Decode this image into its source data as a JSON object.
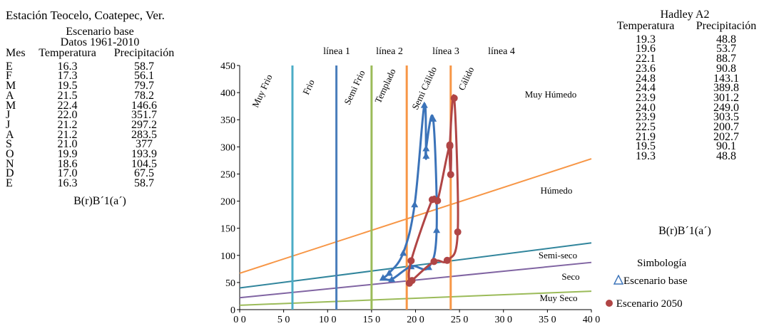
{
  "left_panel": {
    "station": "Estación Teocelo, Coatepec, Ver.",
    "scenario": "Escenario base",
    "period": "Datos 1961-2010",
    "headers": [
      "Mes",
      "Temperatura",
      "Precipitación"
    ],
    "rows": [
      [
        "E",
        "16.3",
        "58.7"
      ],
      [
        "F",
        "17.3",
        "56.1"
      ],
      [
        "M",
        "19.5",
        "79.7"
      ],
      [
        "A",
        "21.5",
        "78.2"
      ],
      [
        "M",
        "22.4",
        "146.6"
      ],
      [
        "J",
        "22.0",
        "351.7"
      ],
      [
        "J",
        "21.2",
        "297.2"
      ],
      [
        "A",
        "21.2",
        "283.5"
      ],
      [
        "S",
        "21.0",
        "377"
      ],
      [
        "O",
        "19.9",
        "193.9"
      ],
      [
        "N",
        "18.6",
        "104.5"
      ],
      [
        "D",
        "17.0",
        "67.5"
      ],
      [
        "E",
        "16.3",
        "58.7"
      ]
    ],
    "climate_code": "B(r)B´1(a´)"
  },
  "right_panel": {
    "title": "Hadley A2",
    "headers": [
      "Temperatura",
      "Precipitación"
    ],
    "rows": [
      [
        "19.3",
        "48.8"
      ],
      [
        "19.6",
        "53.7"
      ],
      [
        "22.1",
        "88.7"
      ],
      [
        "23.6",
        "90.8"
      ],
      [
        "24.8",
        "143.1"
      ],
      [
        "24.4",
        "389.8"
      ],
      [
        "23.9",
        "301.2"
      ],
      [
        "24.0",
        "249.0"
      ],
      [
        "23.9",
        "303.5"
      ],
      [
        "22.5",
        "200.7"
      ],
      [
        "21.9",
        "202.7"
      ],
      [
        "19.5",
        "90.1"
      ],
      [
        "19.3",
        "48.8"
      ]
    ],
    "climate_code": "B(r)B´1(a´)"
  },
  "legend": {
    "title": "Simbología",
    "base_label": "Escenario base",
    "future_label": "Escenario 2050"
  },
  "colors": {
    "base": "#3b73b9",
    "future": "#b04545",
    "cyan": "#4bacc6",
    "blue": "#4a7ebb",
    "green": "#9bbb59",
    "orange": "#f79646",
    "purple": "#8064a2",
    "teal": "#31859c"
  },
  "chart_data": {
    "type": "scatter",
    "xlim": [
      0,
      40
    ],
    "ylim": [
      0,
      450
    ],
    "x_ticks": [
      "0 0",
      "5 0",
      "10 0",
      "15 0",
      "20 0",
      "25 0",
      "30 0",
      "35 0",
      "40 0"
    ],
    "y_ticks": [
      "0",
      "50",
      "100",
      "150",
      "200",
      "250",
      "300",
      "350",
      "400",
      "450"
    ],
    "vertical_lines": [
      {
        "label": "",
        "x": 6,
        "color": "cyan"
      },
      {
        "label": "línea 1",
        "x": 11,
        "color": "blue"
      },
      {
        "label": "línea 2",
        "x": 15,
        "color": "green"
      },
      {
        "label": "línea 3",
        "x": 19,
        "color": "orange"
      },
      {
        "label": "línea 4",
        "x": 24,
        "color": "orange"
      }
    ],
    "temperature_zones": [
      "Muy Frio",
      "Frio",
      "Semi Frio",
      "Templado",
      "Semi Cálido",
      "Cálido"
    ],
    "humidity_lines": [
      {
        "label": "Húmedo",
        "y0": 67,
        "y1": 278,
        "color": "orange"
      },
      {
        "label": "Semi-seco",
        "y0": 40,
        "y1": 123,
        "color": "teal"
      },
      {
        "label": "Seco",
        "y0": 22,
        "y1": 87,
        "color": "purple"
      },
      {
        "label": "Muy Seco",
        "y0": 8,
        "y1": 34,
        "color": "green"
      }
    ],
    "humidity_top_label": "Muy Húmedo",
    "series": [
      {
        "name": "Escenario base",
        "marker": "triangle",
        "color": "base",
        "points": [
          [
            16.3,
            58.7
          ],
          [
            17.3,
            56.1
          ],
          [
            19.5,
            79.7
          ],
          [
            21.5,
            78.2
          ],
          [
            22.4,
            146.6
          ],
          [
            22.0,
            351.7
          ],
          [
            21.2,
            297.2
          ],
          [
            21.2,
            283.5
          ],
          [
            21.0,
            377
          ],
          [
            19.9,
            193.9
          ],
          [
            18.6,
            104.5
          ],
          [
            17.0,
            67.5
          ],
          [
            16.3,
            58.7
          ]
        ]
      },
      {
        "name": "Escenario 2050",
        "marker": "circle",
        "color": "future",
        "points": [
          [
            19.3,
            48.8
          ],
          [
            19.6,
            53.7
          ],
          [
            22.1,
            88.7
          ],
          [
            23.6,
            90.8
          ],
          [
            24.8,
            143.1
          ],
          [
            24.4,
            389.8
          ],
          [
            23.9,
            301.2
          ],
          [
            24.0,
            249.0
          ],
          [
            23.9,
            303.5
          ],
          [
            22.5,
            200.7
          ],
          [
            21.9,
            202.7
          ],
          [
            19.5,
            90.1
          ],
          [
            19.3,
            48.8
          ]
        ]
      }
    ]
  }
}
